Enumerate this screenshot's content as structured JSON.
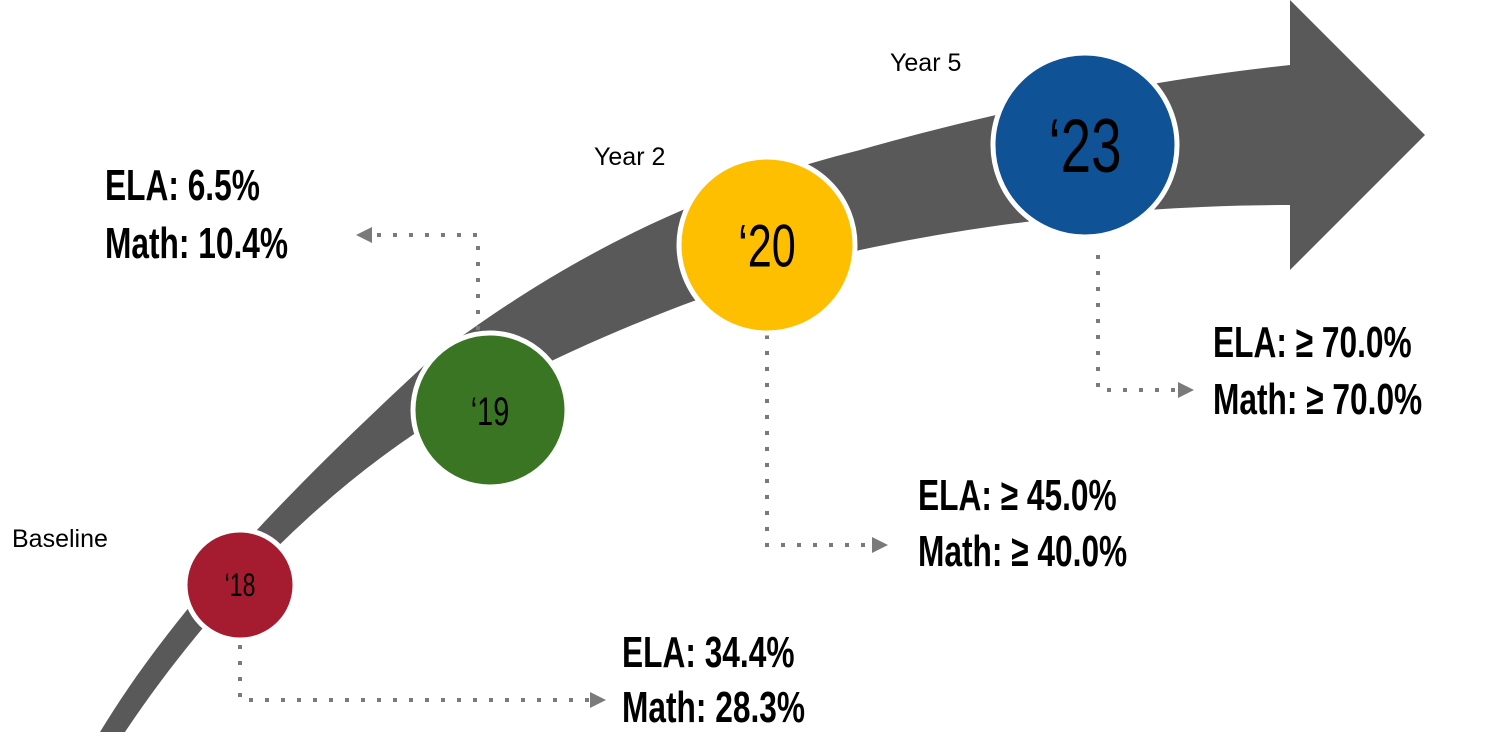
{
  "nodes": [
    {
      "label": "‘18",
      "caption": "Baseline",
      "stats": [
        "ELA: 34.4%",
        "Math: 28.3%"
      ]
    },
    {
      "label": "‘19",
      "stats": [
        "ELA: 6.5%",
        "Math: 10.4%"
      ]
    },
    {
      "label": "‘20",
      "caption": "Year 2",
      "stats": [
        "ELA: ≥ 45.0%",
        "Math: ≥ 40.0%"
      ]
    },
    {
      "label": "‘23",
      "caption": "Year 5",
      "stats": [
        "ELA: ≥ 70.0%",
        "Math: ≥ 70.0%"
      ]
    }
  ]
}
